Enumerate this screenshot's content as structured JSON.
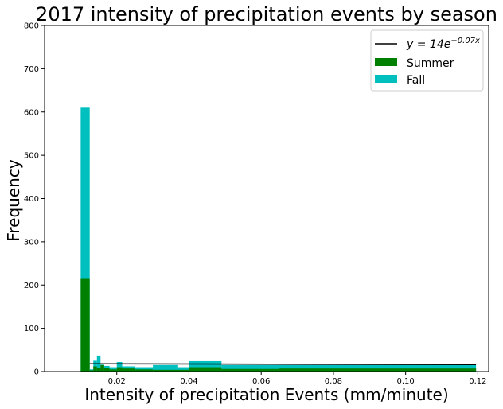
{
  "chart_data": {
    "type": "bar",
    "title": "2017 intensity of precipitation events by season",
    "xlabel": "Intensity of precipitation Events (mm/minute)",
    "ylabel": "Frequency",
    "xlim": [
      0.0,
      0.123
    ],
    "ylim": [
      0,
      800
    ],
    "xticks": [
      0.02,
      0.04,
      0.06,
      0.08,
      0.1,
      0.12
    ],
    "xtick_labels": [
      "0.02",
      "0.04",
      "0.06",
      "0.08",
      "0.10",
      "0.12"
    ],
    "yticks": [
      0,
      100,
      200,
      300,
      400,
      500,
      600,
      700,
      800
    ],
    "ytick_labels": [
      "0",
      "100",
      "200",
      "300",
      "400",
      "500",
      "600",
      "700",
      "800"
    ],
    "grid": false,
    "legend_position": "top-right",
    "fit_line": {
      "label": "y = 14e^{-0.07x}",
      "label_prefix": "y = 14e",
      "label_exponent": "−0.07x",
      "color": "#000000",
      "points": [
        [
          0.0125,
          18
        ],
        [
          0.1195,
          16
        ]
      ]
    },
    "series": [
      {
        "name": "Summer",
        "color": "#008000",
        "bins": [
          {
            "x0": 0.01,
            "x1": 0.0125,
            "value": 216
          },
          {
            "x0": 0.0125,
            "x1": 0.0135,
            "value": 3
          },
          {
            "x0": 0.0135,
            "x1": 0.0145,
            "value": 12
          },
          {
            "x0": 0.0145,
            "x1": 0.0155,
            "value": 8
          },
          {
            "x0": 0.0155,
            "x1": 0.0165,
            "value": 15
          },
          {
            "x0": 0.0165,
            "x1": 0.018,
            "value": 8
          },
          {
            "x0": 0.018,
            "x1": 0.02,
            "value": 5
          },
          {
            "x0": 0.02,
            "x1": 0.0215,
            "value": 10
          },
          {
            "x0": 0.0215,
            "x1": 0.025,
            "value": 7
          },
          {
            "x0": 0.025,
            "x1": 0.03,
            "value": 5
          },
          {
            "x0": 0.03,
            "x1": 0.04,
            "value": 4
          },
          {
            "x0": 0.04,
            "x1": 0.049,
            "value": 10
          },
          {
            "x0": 0.049,
            "x1": 0.065,
            "value": 6
          },
          {
            "x0": 0.065,
            "x1": 0.1195,
            "value": 7
          }
        ]
      },
      {
        "name": "Fall",
        "color": "#00BFBF",
        "bins": [
          {
            "x0": 0.01,
            "x1": 0.0125,
            "value": 610
          },
          {
            "x0": 0.0125,
            "x1": 0.0135,
            "value": 5
          },
          {
            "x0": 0.0135,
            "x1": 0.0145,
            "value": 25
          },
          {
            "x0": 0.0145,
            "x1": 0.0155,
            "value": 37
          },
          {
            "x0": 0.0155,
            "x1": 0.0165,
            "value": 16
          },
          {
            "x0": 0.0165,
            "x1": 0.018,
            "value": 13
          },
          {
            "x0": 0.018,
            "x1": 0.02,
            "value": 10
          },
          {
            "x0": 0.02,
            "x1": 0.0215,
            "value": 22
          },
          {
            "x0": 0.0215,
            "x1": 0.025,
            "value": 12
          },
          {
            "x0": 0.025,
            "x1": 0.03,
            "value": 10
          },
          {
            "x0": 0.03,
            "x1": 0.037,
            "value": 15
          },
          {
            "x0": 0.037,
            "x1": 0.04,
            "value": 10
          },
          {
            "x0": 0.04,
            "x1": 0.049,
            "value": 24
          },
          {
            "x0": 0.049,
            "x1": 0.065,
            "value": 15
          },
          {
            "x0": 0.065,
            "x1": 0.1195,
            "value": 15
          }
        ]
      }
    ]
  }
}
